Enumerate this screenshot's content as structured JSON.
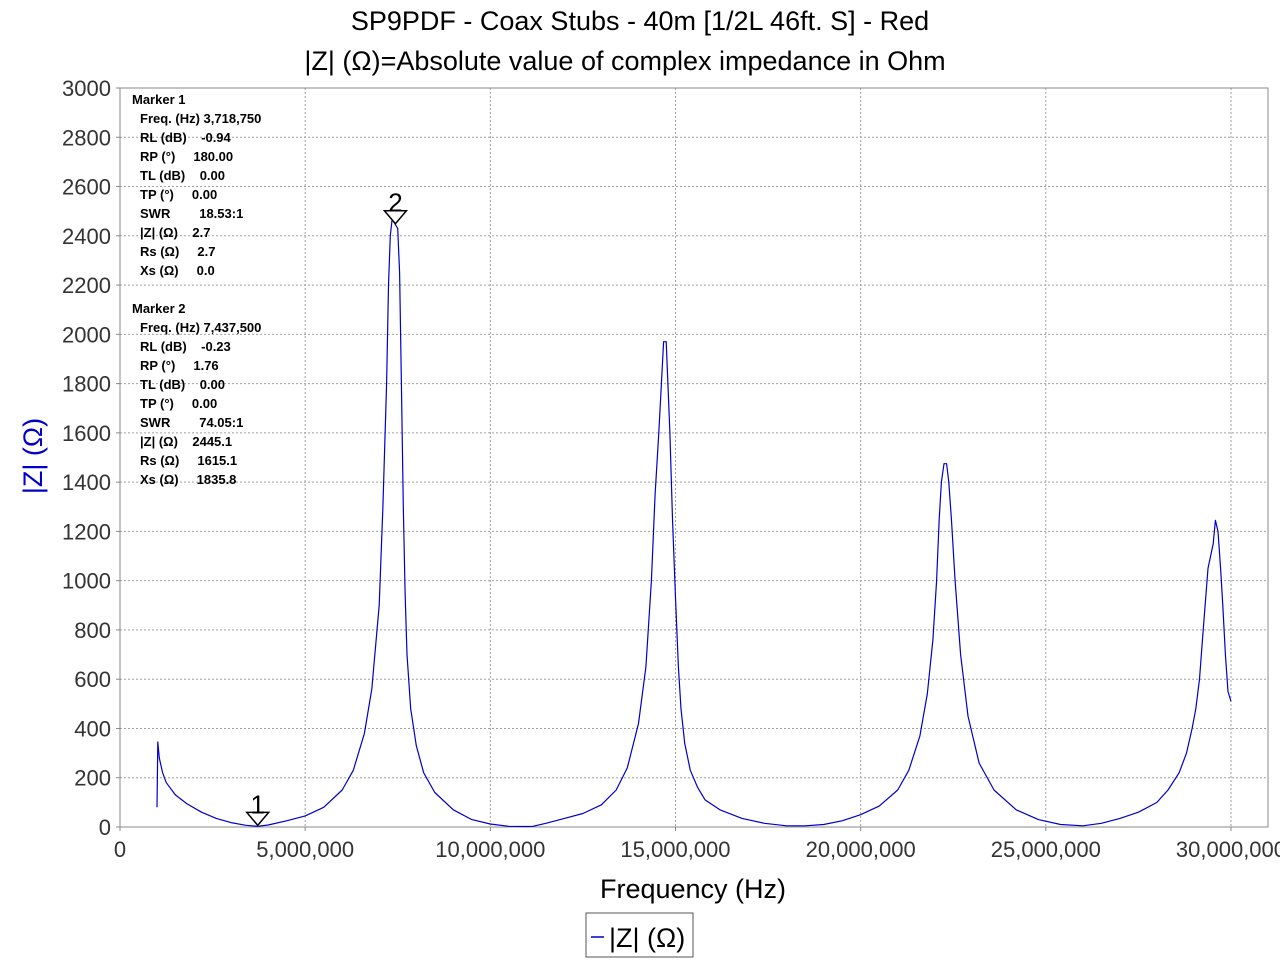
{
  "window": {
    "title": "SP9PDF - Coax Stubs - 40m [1/2L 46ft. S] - Red",
    "subtitle": "|Z| (Ω)=Absolute value of complex impedance in Ohm"
  },
  "colors": {
    "series": "#0000c8",
    "ylabel": "#0000c8",
    "grid": "#a0a0a0",
    "axis": "#888888",
    "text": "#000000"
  },
  "chart_data": {
    "type": "line",
    "title": "SP9PDF - Coax Stubs - 40m [1/2L 46ft. S] - Red",
    "subtitle": "|Z| (Ω)=Absolute value of complex impedance in Ohm",
    "xlabel": "Frequency (Hz)",
    "ylabel": "|Z| (Ω)",
    "xlim": [
      0,
      31000000
    ],
    "ylim": [
      0,
      3000
    ],
    "grid": true,
    "legend_position": "bottom-center",
    "x_ticks": [
      0,
      5000000,
      10000000,
      15000000,
      20000000,
      25000000,
      30000000
    ],
    "x_tick_labels": [
      "0",
      "5,000,000",
      "10,000,000",
      "15,000,000",
      "20,000,000",
      "25,000,000",
      "30,000,000"
    ],
    "y_ticks": [
      0,
      200,
      400,
      600,
      800,
      1000,
      1200,
      1400,
      1600,
      1800,
      2000,
      2200,
      2400,
      2600,
      2800,
      3000
    ],
    "y_tick_labels": [
      "0",
      "200",
      "400",
      "600",
      "800",
      "1000",
      "1200",
      "1400",
      "1600",
      "1800",
      "2000",
      "2200",
      "2400",
      "2600",
      "2800",
      "3000"
    ],
    "series": [
      {
        "name": "|Z| (Ω)",
        "color": "#0000c8",
        "x": [
          1000000,
          1020000,
          1060000,
          1150000,
          1250000,
          1500000,
          1800000,
          2200000,
          2600000,
          3000000,
          3400000,
          3718750,
          4000000,
          4500000,
          5000000,
          5500000,
          6000000,
          6300000,
          6600000,
          6800000,
          7000000,
          7100000,
          7200000,
          7250000,
          7300000,
          7350000,
          7437500,
          7500000,
          7550000,
          7600000,
          7650000,
          7700000,
          7750000,
          7850000,
          8000000,
          8200000,
          8500000,
          9000000,
          9500000,
          10000000,
          10500000,
          11000000,
          11150000,
          11500000,
          12000000,
          12500000,
          13000000,
          13400000,
          13700000,
          14000000,
          14200000,
          14350000,
          14450000,
          14550000,
          14620000,
          14680000,
          14750000,
          14850000,
          14920000,
          15000000,
          15080000,
          15150000,
          15250000,
          15400000,
          15600000,
          15800000,
          16200000,
          16800000,
          17400000,
          18000000,
          18500000,
          19000000,
          19500000,
          20000000,
          20500000,
          21000000,
          21300000,
          21600000,
          21800000,
          21950000,
          22050000,
          22120000,
          22180000,
          22250000,
          22320000,
          22380000,
          22450000,
          22550000,
          22700000,
          22900000,
          23200000,
          23600000,
          24200000,
          24800000,
          25400000,
          26000000,
          26500000,
          27000000,
          27500000,
          28000000,
          28300000,
          28600000,
          28800000,
          28950000,
          29050000,
          29150000,
          29250000,
          29380000,
          29450000,
          29520000,
          29580000,
          29650000,
          29720000,
          29780000,
          29850000,
          29920000,
          30000000
        ],
        "values": [
          80,
          345,
          280,
          220,
          180,
          130,
          95,
          60,
          35,
          18,
          7,
          2.7,
          8,
          25,
          45,
          80,
          150,
          230,
          380,
          560,
          900,
          1300,
          1800,
          2200,
          2400,
          2470,
          2445,
          2430,
          2250,
          1800,
          1300,
          950,
          700,
          480,
          330,
          220,
          140,
          70,
          30,
          12,
          3,
          2,
          3,
          15,
          35,
          55,
          90,
          150,
          240,
          420,
          650,
          1000,
          1350,
          1600,
          1800,
          1970,
          1970,
          1600,
          1250,
          930,
          650,
          480,
          340,
          230,
          160,
          110,
          70,
          35,
          15,
          5,
          5,
          10,
          25,
          50,
          85,
          150,
          230,
          370,
          540,
          760,
          1000,
          1250,
          1400,
          1475,
          1475,
          1400,
          1250,
          1000,
          700,
          450,
          260,
          150,
          70,
          30,
          10,
          5,
          15,
          35,
          60,
          100,
          150,
          220,
          300,
          400,
          480,
          600,
          800,
          1050,
          1100,
          1150,
          1245,
          1200,
          1050,
          900,
          700,
          550,
          510
        ]
      }
    ],
    "markers": [
      {
        "id": "1",
        "x": 3718750,
        "y": 2.7
      },
      {
        "id": "2",
        "x": 7437500,
        "y": 2445.1
      }
    ]
  },
  "marker_panel": [
    {
      "heading": "Marker 1",
      "rows": [
        "Freq. (Hz) 3,718,750",
        "RL (dB)    -0.94",
        "RP (°)     180.00",
        "TL (dB)    0.00",
        "TP (°)     0.00",
        "SWR        18.53:1",
        "|Z| (Ω)    2.7",
        "Rs (Ω)     2.7",
        "Xs (Ω)     0.0"
      ]
    },
    {
      "heading": "Marker 2",
      "rows": [
        "Freq. (Hz) 7,437,500",
        "RL (dB)    -0.23",
        "RP (°)     1.76",
        "TL (dB)    0.00",
        "TP (°)     0.00",
        "SWR        74.05:1",
        "|Z| (Ω)    2445.1",
        "Rs (Ω)     1615.1",
        "Xs (Ω)     1835.8"
      ]
    }
  ],
  "legend": {
    "label": "|Z| (Ω)"
  }
}
